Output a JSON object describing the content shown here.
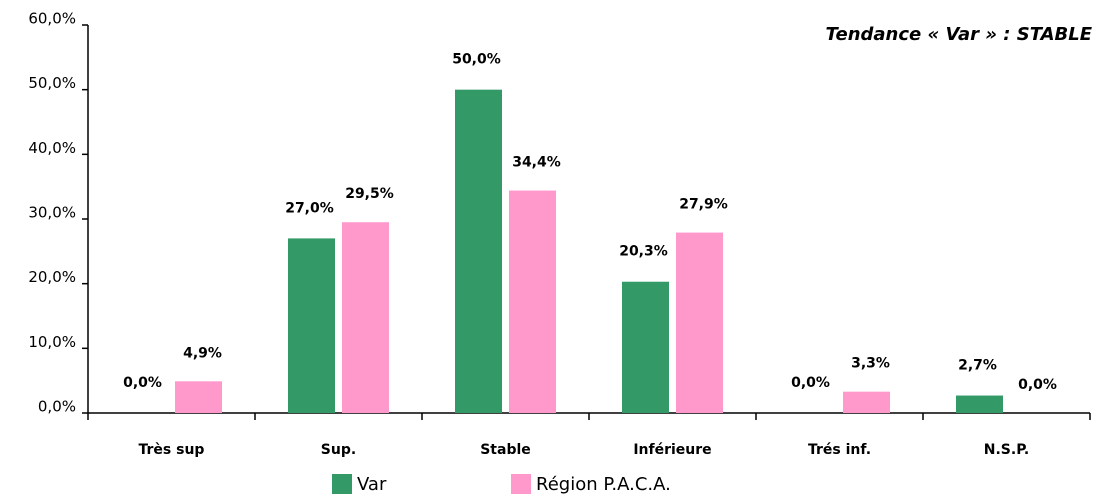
{
  "chart_data": {
    "type": "bar",
    "title": "Tendance « Var » : STABLE",
    "categories": [
      "Très sup",
      "Sup.",
      "Stable",
      "Inférieure",
      "Trés inf.",
      "N.S.P."
    ],
    "series": [
      {
        "name": "Var",
        "color": "#339966",
        "values": [
          0,
          27,
          50,
          20.3,
          0,
          2.7
        ],
        "value_labels": [
          "0,0%",
          "27,0%",
          "50,0%",
          "20,3%",
          "0,0%",
          "2,7%"
        ]
      },
      {
        "name": "Région P.A.C.A.",
        "color": "#ff99cc",
        "values": [
          4.9,
          29.5,
          34.4,
          27.9,
          3.3,
          0
        ],
        "value_labels": [
          "4,9%",
          "29,5%",
          "34,4%",
          "27,9%",
          "3,3%",
          "0,0%"
        ]
      }
    ],
    "ylim": [
      0,
      60
    ],
    "yticks": [
      {
        "value": 0,
        "label": "0,0%"
      },
      {
        "value": 10,
        "label": "10,0%"
      },
      {
        "value": 20,
        "label": "20,0%"
      },
      {
        "value": 30,
        "label": "30,0%"
      },
      {
        "value": 40,
        "label": "40,0%"
      },
      {
        "value": 50,
        "label": "50,0%"
      },
      {
        "value": 60,
        "label": "60,0%"
      }
    ],
    "legend": "bottom"
  }
}
